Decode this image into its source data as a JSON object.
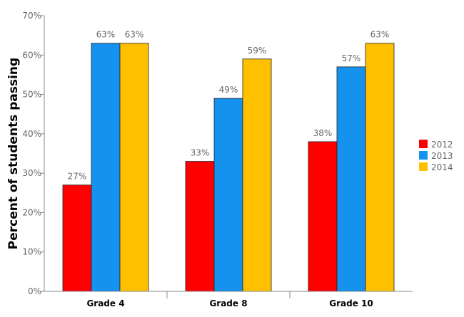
{
  "chart_data": {
    "type": "bar",
    "title": "",
    "xlabel": "",
    "ylabel": "Percent of students passing",
    "categories": [
      "Grade 4",
      "Grade 8",
      "Grade 10"
    ],
    "series": [
      {
        "name": "2012",
        "color": "#ff0000",
        "values": [
          27,
          33,
          38
        ]
      },
      {
        "name": "2013",
        "color": "#1591ee",
        "values": [
          63,
          49,
          57
        ]
      },
      {
        "name": "2014",
        "color": "#ffc000",
        "values": [
          63,
          59,
          63
        ]
      }
    ],
    "ylim": [
      0,
      70
    ],
    "yticks": [
      0,
      10,
      20,
      30,
      40,
      50,
      60,
      70
    ],
    "tick_suffix": "%",
    "data_labels": [
      [
        "27%",
        "33%",
        "38%"
      ],
      [
        "63%",
        "49%",
        "57%"
      ],
      [
        "63%",
        "59%",
        "63%"
      ]
    ],
    "legend_position": "right",
    "grid": false
  }
}
